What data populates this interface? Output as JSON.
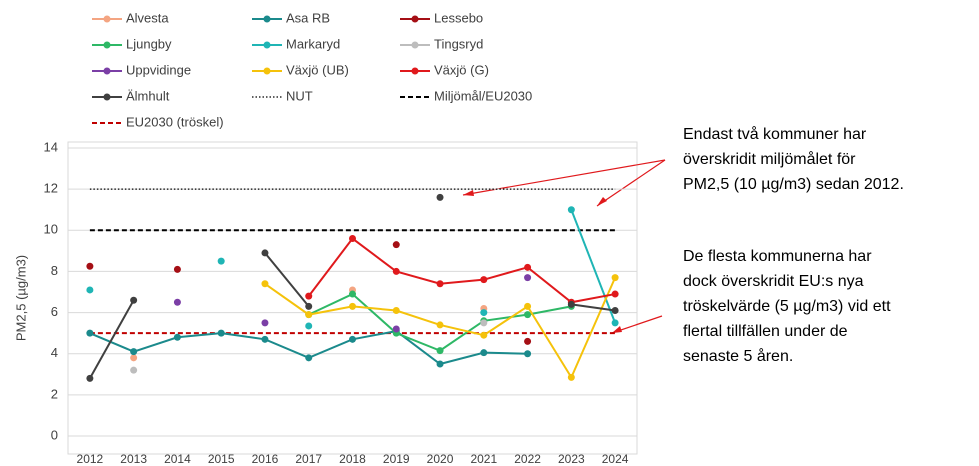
{
  "chart_data": {
    "type": "line",
    "y_label": "PM2,5 (µg/m3)",
    "categories": [
      "2012",
      "2013",
      "2014",
      "2015",
      "2016",
      "2017",
      "2018",
      "2019",
      "2020",
      "2021",
      "2022",
      "2023",
      "2024"
    ],
    "ylim": [
      0,
      14
    ],
    "yticks": [
      0,
      2,
      4,
      6,
      8,
      10,
      12,
      14
    ],
    "grid": true,
    "series": [
      {
        "name": "Alvesta",
        "color": "#f4a582",
        "values": [
          null,
          3.8,
          null,
          null,
          null,
          null,
          7.1,
          null,
          null,
          6.2,
          null,
          null,
          null
        ]
      },
      {
        "name": "Asa RB",
        "color": "#1b8a8c",
        "values": [
          5.0,
          4.1,
          4.8,
          5.0,
          4.7,
          3.8,
          4.7,
          5.1,
          3.5,
          4.05,
          4.0,
          null,
          null
        ]
      },
      {
        "name": "Lessebo",
        "color": "#a50f15",
        "values": [
          8.25,
          null,
          8.1,
          null,
          null,
          null,
          null,
          9.3,
          null,
          null,
          4.6,
          null,
          null
        ]
      },
      {
        "name": "Ljungby",
        "color": "#2eb866",
        "values": [
          null,
          null,
          null,
          null,
          null,
          5.9,
          6.9,
          5.0,
          4.15,
          5.6,
          5.9,
          6.3,
          null
        ]
      },
      {
        "name": "Markaryd",
        "color": "#1fb5b5",
        "values": [
          7.1,
          null,
          null,
          8.5,
          null,
          5.35,
          null,
          null,
          null,
          6.0,
          null,
          11.0,
          5.5
        ]
      },
      {
        "name": "Tingsryd",
        "color": "#bdbdbd",
        "values": [
          null,
          3.2,
          null,
          null,
          null,
          null,
          null,
          null,
          null,
          5.5,
          null,
          null,
          null
        ]
      },
      {
        "name": "Uppvidinge",
        "color": "#7b3fa6",
        "values": [
          null,
          null,
          6.5,
          null,
          5.5,
          null,
          null,
          5.2,
          null,
          null,
          7.7,
          null,
          null
        ]
      },
      {
        "name": "Växjö (UB)",
        "color": "#f5c20b",
        "values": [
          null,
          null,
          null,
          null,
          7.4,
          5.9,
          6.3,
          6.1,
          5.4,
          4.9,
          6.3,
          2.85,
          7.7
        ]
      },
      {
        "name": "Växjö (G)",
        "color": "#e0191c",
        "values": [
          null,
          null,
          null,
          null,
          null,
          6.8,
          9.6,
          8.0,
          7.4,
          7.6,
          8.2,
          6.5,
          6.9
        ]
      },
      {
        "name": "Älmhult",
        "color": "#404040",
        "values": [
          2.8,
          6.6,
          null,
          null,
          8.9,
          6.3,
          null,
          null,
          11.6,
          null,
          null,
          6.4,
          6.1
        ]
      }
    ],
    "reference_lines": [
      {
        "name": "NUT",
        "value": 12,
        "color": "#000000",
        "style": "dotted"
      },
      {
        "name": "Miljömål/EU2030",
        "value": 10,
        "color": "#000000",
        "style": "dashed"
      },
      {
        "name": "EU2030 (tröskel)",
        "value": 5,
        "color": "#c00000",
        "style": "dashed"
      }
    ],
    "annotations": [
      {
        "lines": [
          "Endast två kommuner har",
          "överskridit miljömålet för",
          "PM2,5 (10 µg/m3) sedan 2012."
        ]
      },
      {
        "lines": [
          "De flesta kommunerna har",
          "dock överskridit EU:s nya",
          "tröskelvärde (5 µg/m3) vid ett",
          "flertal tillfällen under de",
          "senaste 5 åren."
        ]
      }
    ]
  }
}
